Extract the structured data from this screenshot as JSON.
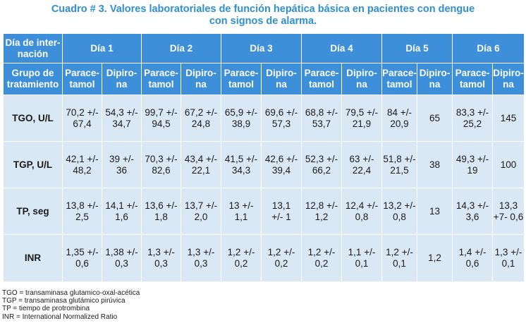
{
  "title": {
    "line1": "Cuadro # 3. Valores laboratoriales de función hepática básica en pacientes con dengue",
    "line2": "con signos de alarma."
  },
  "header": {
    "row_label": "Día de inter-\nnación",
    "days": [
      "Día 1",
      "Día 2",
      "Día 3",
      "Día 4",
      "Día 5",
      "Día 6"
    ],
    "group_label": "Grupo de\ntratamiento",
    "groups": [
      "Parace-\ntamol",
      "Dipiro-\nna"
    ]
  },
  "rows": [
    {
      "label": "TGO, U/L",
      "cells": [
        "70,2 +/-\n67,4",
        "54,3 +/-\n34,7",
        "99,7 +/-\n94,5",
        "67,2 +/-\n24,8",
        "65,9 +/-\n38,9",
        "69,6 +/-\n57,3",
        "68,8 +/-\n53,7",
        "79,5 +/-\n21,9",
        "84 +/-\n20,9",
        "65",
        "83,3 +/-\n25,2",
        "145"
      ]
    },
    {
      "label": "TGP, U/L",
      "cells": [
        "42,1 +/-\n48,2",
        "39 +/-\n36",
        "70,3 +/-\n82,6",
        "43,4 +/-\n22,1",
        "41,5 +/-\n34,3",
        "42,6 +/-\n39,4",
        "52,3 +/-\n66,2",
        "63 +/-\n22,4",
        "51,8 +/-\n21,5",
        "38",
        "49,3 +/-\n19",
        "100"
      ]
    },
    {
      "label": "TP, seg",
      "cells": [
        "13,8 +/-\n2,5",
        "14,1 +/-\n1,6",
        "13,6 +/-\n1,8",
        "13,7 +/-\n2,0",
        "13 +/-\n1,1",
        "13,1\n+/- 1",
        "12,8 +/-\n1,2",
        "12,4 +/-\n0,8",
        "13,2 +/-\n0,8",
        "13",
        "14,3 +/-\n3,6",
        "13,3\n+7- 0,6"
      ]
    },
    {
      "label": "INR",
      "cells": [
        "1,35 +/-\n0,6",
        "1,38 +/-\n0,3",
        "1,3 +/-\n0,3",
        "1,3 +/-\n0,3",
        "1,2 +/-\n0,2",
        "1,2 +/-\n0,2",
        "1,2 +/-\n0,2",
        "1,1 +/-\n0,1",
        "1,2 +/-\n0,1",
        "1,2",
        "1,4 +/-\n0,6",
        "1,3 +/-\n0,1"
      ]
    }
  ],
  "legend": [
    "TGO = transaminasa glutamico-oxal-acética",
    "TGP = transaminasa glutámico pirúvica",
    "TP = tiempo de protrombina",
    "INR = International Normalized Ratio"
  ]
}
